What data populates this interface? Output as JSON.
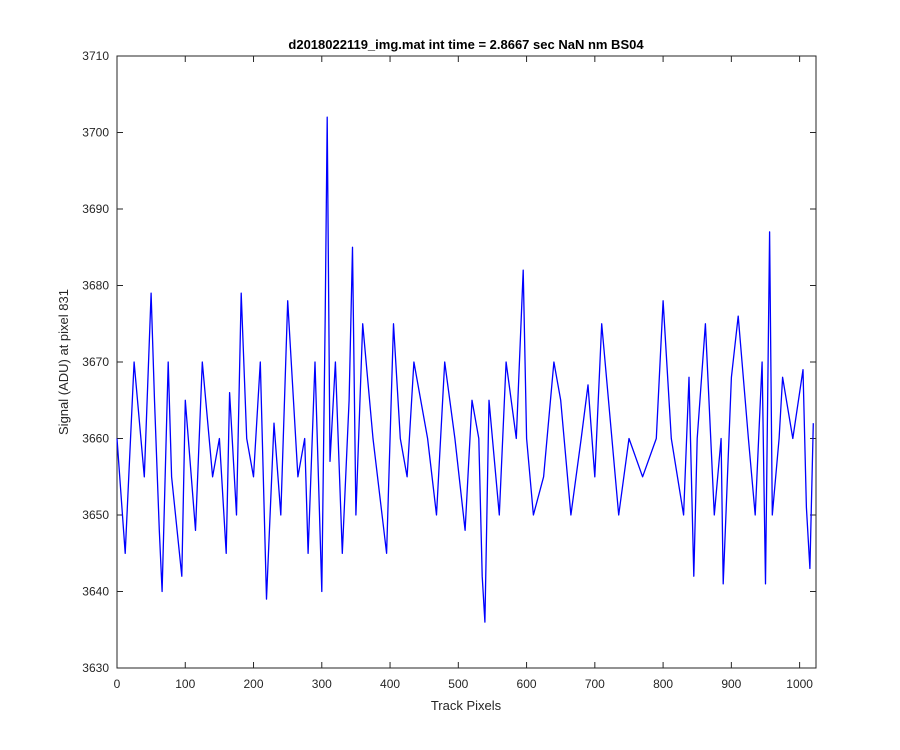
{
  "chart_data": {
    "type": "line",
    "title": "d2018022119_img.mat int time = 2.8667 sec  NaN nm BS04",
    "xlabel": "Track Pixels",
    "ylabel": "Signal (ADU) at pixel 831",
    "xlim": [
      0,
      1024
    ],
    "ylim": [
      3630,
      3710
    ],
    "xticks": [
      0,
      100,
      200,
      300,
      400,
      500,
      600,
      700,
      800,
      900,
      1000
    ],
    "yticks": [
      3630,
      3640,
      3650,
      3660,
      3670,
      3680,
      3690,
      3700,
      3710
    ],
    "grid": false,
    "legend": "none",
    "series": [
      {
        "color": "#0000ff",
        "x": [
          0,
          12,
          25,
          40,
          50,
          55,
          62,
          66,
          75,
          80,
          95,
          100,
          115,
          125,
          140,
          150,
          160,
          165,
          175,
          182,
          190,
          200,
          210,
          219,
          230,
          240,
          250,
          265,
          275,
          280,
          290,
          300,
          305,
          308,
          312,
          320,
          330,
          340,
          345,
          350,
          360,
          375,
          395,
          405,
          415,
          425,
          435,
          455,
          468,
          480,
          495,
          510,
          520,
          530,
          535,
          539,
          545,
          560,
          570,
          585,
          595,
          600,
          610,
          625,
          640,
          650,
          665,
          680,
          690,
          700,
          710,
          720,
          735,
          750,
          770,
          790,
          800,
          812,
          830,
          838,
          845,
          850,
          862,
          875,
          885,
          888,
          900,
          910,
          925,
          935,
          945,
          950,
          956,
          960,
          970,
          975,
          990,
          1005,
          1010,
          1015,
          1020
        ],
        "y": [
          3660,
          3645,
          3670,
          3655,
          3679,
          3665,
          3648,
          3640,
          3670,
          3655,
          3642,
          3665,
          3648,
          3670,
          3655,
          3660,
          3645,
          3666,
          3650,
          3679,
          3660,
          3655,
          3670,
          3639,
          3662,
          3650,
          3678,
          3655,
          3660,
          3645,
          3670,
          3640,
          3676,
          3702,
          3657,
          3670,
          3645,
          3665,
          3685,
          3650,
          3675,
          3660,
          3645,
          3675,
          3660,
          3655,
          3670,
          3660,
          3650,
          3670,
          3660,
          3648,
          3665,
          3660,
          3642,
          3636,
          3665,
          3650,
          3670,
          3660,
          3682,
          3660,
          3650,
          3655,
          3670,
          3665,
          3650,
          3660,
          3667,
          3655,
          3675,
          3665,
          3650,
          3660,
          3655,
          3660,
          3678,
          3660,
          3650,
          3668,
          3642,
          3660,
          3675,
          3650,
          3660,
          3641,
          3668,
          3676,
          3660,
          3650,
          3670,
          3641,
          3687,
          3650,
          3660,
          3668,
          3660,
          3669,
          3651,
          3643,
          3662
        ]
      }
    ]
  }
}
